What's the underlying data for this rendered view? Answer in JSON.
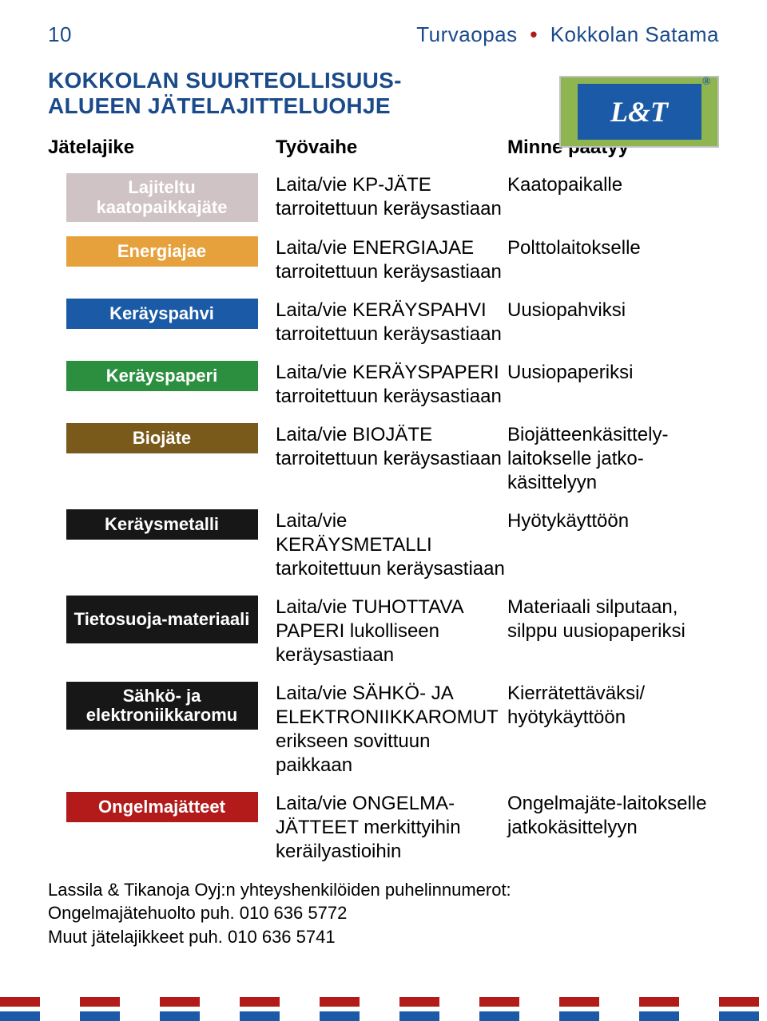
{
  "header": {
    "page_number": "10",
    "title": "Turvaopas",
    "subtitle": "Kokkolan Satama"
  },
  "main_title": "KOKKOLAN SUURTEOLLISUUS-\nALUEEN JÄTELAJITTELUOHJE",
  "logo_text": "L&T",
  "columns": {
    "col1": "Jätelajike",
    "col2": "Työvaihe",
    "col3": "Minne päätyy"
  },
  "rows": [
    {
      "badge": "Lajiteltu kaatopaikkajäte",
      "badge_multiline": true,
      "badge_color": "#cfc3c6",
      "work": "Laita/vie KP-JÄTE tarroitettuun keräysastiaan",
      "dest": "Kaatopaikalle"
    },
    {
      "badge": "Energiajae",
      "badge_multiline": false,
      "badge_color": "#e7a13c",
      "work": "Laita/vie ENERGIAJAE tarroitettuun keräysastiaan",
      "dest": "Polttolaitokselle"
    },
    {
      "badge": "Keräyspahvi",
      "badge_multiline": false,
      "badge_color": "#1b5aa6",
      "work": "Laita/vie KERÄYSPAHVI tarroitettuun keräysastiaan",
      "dest": "Uusiopahviksi"
    },
    {
      "badge": "Keräyspaperi",
      "badge_multiline": false,
      "badge_color": "#2b8f3f",
      "work": "Laita/vie KERÄYSPAPERI tarroitettuun keräysastiaan",
      "dest": "Uusiopaperiksi"
    },
    {
      "badge": "Biojäte",
      "badge_multiline": false,
      "badge_color": "#7a5a1a",
      "work": "Laita/vie BIOJÄTE tarroitettuun keräysastiaan",
      "dest": "Biojätteenkäsittely-laitokselle jatko-käsittelyyn"
    },
    {
      "badge": "Keräysmetalli",
      "badge_multiline": false,
      "badge_color": "#171717",
      "work": "Laita/vie KERÄYSMETALLI tarkoitettuun keräysastiaan",
      "dest": "Hyötykäyttöön"
    },
    {
      "badge": "Tietosuoja-materiaali",
      "badge_multiline": true,
      "badge_color": "#171717",
      "work": "Laita/vie TUHOTTAVA PAPERI lukolliseen keräysastiaan",
      "dest": "Materiaali silputaan, silppu uusiopaperiksi"
    },
    {
      "badge": "Sähkö- ja elektroniikkaromu",
      "badge_multiline": true,
      "badge_color": "#171717",
      "work": "Laita/vie SÄHKÖ- JA ELEKTRONIIKKAROMUT erikseen sovittuun paikkaan",
      "dest": "Kierrätettäväksi/ hyötykäyttöön"
    },
    {
      "badge": "Ongelmajätteet",
      "badge_multiline": false,
      "badge_color": "#b31b1b",
      "work": "Laita/vie ONGELMA-JÄTTEET merkittyihin keräilyastioihin",
      "dest": "Ongelmajäte-laitokselle jatkokäsittelyyn"
    }
  ],
  "footer_lines": [
    "Lassila & Tikanoja Oyj:n yhteyshenkilöiden puhelinnumerot:",
    "Ongelmajätehuolto puh. 010 636 5772",
    "Muut jätelajikkeet puh. 010 636 5741"
  ],
  "stripes": {
    "top": {
      "c1": "#b31b1b",
      "c2": "#ffffff"
    },
    "bottom": {
      "c1": "#1b5aa6",
      "c2": "#ffffff"
    }
  }
}
